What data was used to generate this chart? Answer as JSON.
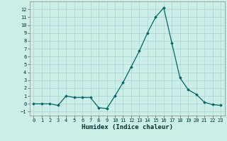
{
  "x": [
    0,
    1,
    2,
    3,
    4,
    5,
    6,
    7,
    8,
    9,
    10,
    11,
    12,
    13,
    14,
    15,
    16,
    17,
    18,
    19,
    20,
    21,
    22,
    23
  ],
  "y": [
    0,
    0,
    0,
    -0.2,
    1,
    0.8,
    0.8,
    0.8,
    -0.5,
    -0.6,
    1,
    2.7,
    4.7,
    6.7,
    9,
    11,
    12.2,
    7.7,
    3.3,
    1.8,
    1.2,
    0.2,
    -0.1,
    -0.2
  ],
  "line_color": "#006666",
  "marker": "D",
  "marker_size": 1.8,
  "bg_color": "#cceee8",
  "grid_color": "#aad4ce",
  "xlabel": "Humidex (Indice chaleur)",
  "ylim": [
    -1.5,
    13
  ],
  "xlim": [
    -0.5,
    23.5
  ],
  "yticks": [
    -1,
    0,
    1,
    2,
    3,
    4,
    5,
    6,
    7,
    8,
    9,
    10,
    11,
    12
  ],
  "xticks": [
    0,
    1,
    2,
    3,
    4,
    5,
    6,
    7,
    8,
    9,
    10,
    11,
    12,
    13,
    14,
    15,
    16,
    17,
    18,
    19,
    20,
    21,
    22,
    23
  ],
  "tick_label_fontsize": 5.0,
  "xlabel_fontsize": 6.5,
  "line_width": 0.9
}
